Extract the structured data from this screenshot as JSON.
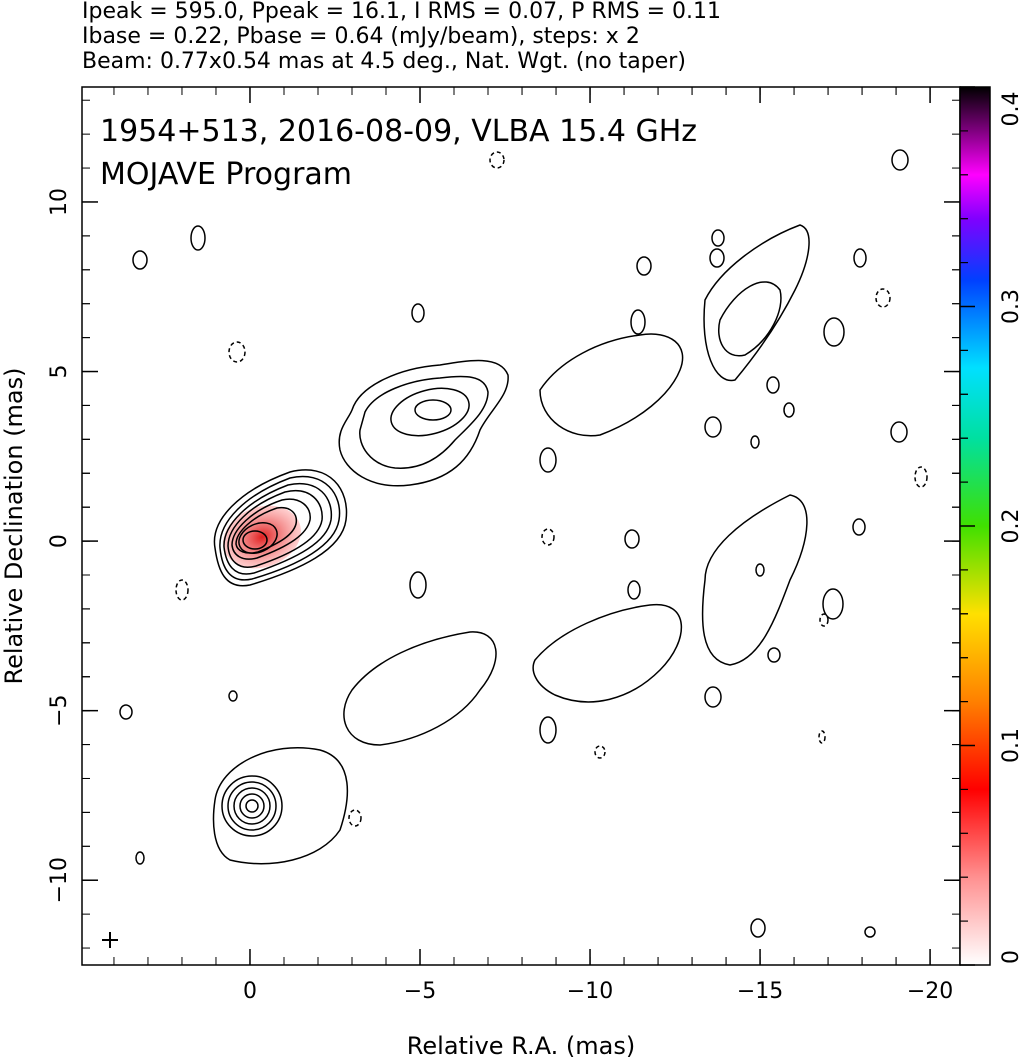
{
  "chart_data": {
    "type": "contour",
    "title_lines": [
      "Ipeak = 595.0, Ppeak = 16.1, I RMS = 0.07, P RMS = 0.11",
      "Ibase = 0.22, Pbase = 0.64 (mJy/beam), steps: x 2",
      "Beam: 0.77x0.54 mas at 4.5 deg., Nat. Wgt. (no taper)"
    ],
    "annotations": [
      "1954+513, 2016-08-09, VLBA 15.4 GHz",
      "MOJAVE Program"
    ],
    "xlabel": "Relative R.A. (mas)",
    "ylabel": "Relative Declination (mas)",
    "xlim": [
      4.94,
      -20.88
    ],
    "ylim": [
      -12.5,
      13.39
    ],
    "xticks": [
      0,
      {
        "value": -5,
        "label": "−5"
      },
      {
        "value": -10,
        "label": "−10"
      },
      {
        "value": -15,
        "label": "−15"
      },
      {
        "value": -20,
        "label": "−20"
      }
    ],
    "yticks": [
      {
        "value": -10,
        "label": "−10"
      },
      {
        "value": -5,
        "label": "−5"
      },
      0,
      5,
      10
    ],
    "colorbar": {
      "lim": [
        0,
        0.4
      ],
      "ticks": [
        0,
        0.1,
        0.2,
        0.3,
        0.4
      ]
    }
  }
}
